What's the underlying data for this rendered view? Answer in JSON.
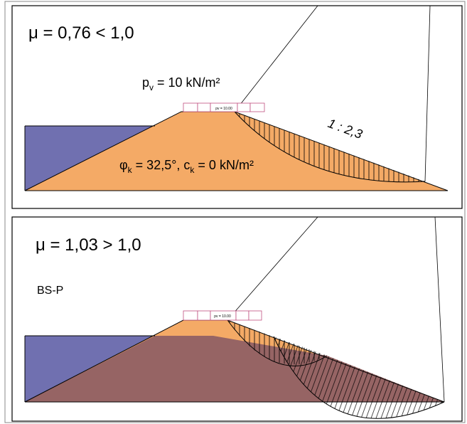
{
  "panels": [
    {
      "title": "μ = 0,76 < 1,0",
      "load_symbol": "p",
      "load_sub": "v",
      "load_text": " = 10 kN/m²",
      "load_box_label": "pv = 10.00",
      "slope": "1 : 2,3",
      "soil_symbol": "φ",
      "soil_sub1": "k",
      "soil_mid": " = 32,5°, c",
      "soil_sub2": "k",
      "soil_end": " = 0 kN/m²"
    },
    {
      "title": "μ = 1,03 > 1,0",
      "label": "BS-P",
      "load_box_label": "pv = 10.00"
    }
  ]
}
